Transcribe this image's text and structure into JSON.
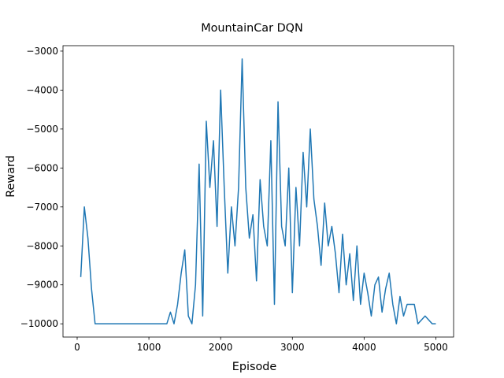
{
  "chart_data": {
    "type": "line",
    "title": "MountainCar DQN",
    "x_label": "Episode",
    "y_label": "Reward",
    "x": [
      50,
      100,
      150,
      200,
      250,
      300,
      350,
      400,
      450,
      500,
      550,
      600,
      650,
      700,
      750,
      800,
      850,
      900,
      950,
      1000,
      1050,
      1100,
      1150,
      1200,
      1250,
      1300,
      1350,
      1400,
      1450,
      1500,
      1550,
      1600,
      1650,
      1700,
      1750,
      1800,
      1850,
      1900,
      1950,
      2000,
      2050,
      2100,
      2150,
      2200,
      2250,
      2300,
      2350,
      2400,
      2450,
      2500,
      2550,
      2600,
      2650,
      2700,
      2750,
      2800,
      2850,
      2900,
      2950,
      3000,
      3050,
      3100,
      3150,
      3200,
      3250,
      3300,
      3350,
      3400,
      3450,
      3500,
      3550,
      3600,
      3650,
      3700,
      3750,
      3800,
      3850,
      3900,
      3950,
      4000,
      4050,
      4100,
      4150,
      4200,
      4250,
      4300,
      4350,
      4400,
      4450,
      4500,
      4550,
      4600,
      4650,
      4700,
      4750,
      4800,
      4850,
      4900,
      4950,
      5000
    ],
    "series": [
      {
        "color": "#1f77b4",
        "values": [
          -8800,
          -7000,
          -7800,
          -9100,
          -10000,
          -10000,
          -10000,
          -10000,
          -10000,
          -10000,
          -10000,
          -10000,
          -10000,
          -10000,
          -10000,
          -10000,
          -10000,
          -10000,
          -10000,
          -10000,
          -10000,
          -10000,
          -10000,
          -10000,
          -10000,
          -9700,
          -10000,
          -9500,
          -8700,
          -8100,
          -9800,
          -10000,
          -9000,
          -5900,
          -9800,
          -4800,
          -6500,
          -5300,
          -7500,
          -4000,
          -6500,
          -8700,
          -7000,
          -8000,
          -6500,
          -3200,
          -6500,
          -7800,
          -7200,
          -8900,
          -6300,
          -7500,
          -8000,
          -5300,
          -9500,
          -4300,
          -7500,
          -8000,
          -6000,
          -9200,
          -6500,
          -8000,
          -5600,
          -7000,
          -5000,
          -6800,
          -7500,
          -8500,
          -6900,
          -8000,
          -7500,
          -8200,
          -9200,
          -7700,
          -9000,
          -8200,
          -9400,
          -8000,
          -9500,
          -8700,
          -9200,
          -9800,
          -9000,
          -8800,
          -9700,
          -9100,
          -8700,
          -9500,
          -10000,
          -9300,
          -9800,
          -9500,
          -9500,
          -9500,
          -10000,
          -9900,
          -9800,
          -9900,
          -10000,
          -10000
        ]
      }
    ],
    "xlim": [
      -197.5,
      5247.5
    ],
    "xticks": [
      0,
      1000,
      2000,
      3000,
      4000,
      5000
    ],
    "ylim": [
      -10340,
      -2860
    ],
    "yticks": [
      {
        "value": -10000,
        "label": "−10000"
      },
      {
        "value": -9000,
        "label": "−9000"
      },
      {
        "value": -8000,
        "label": "−8000"
      },
      {
        "value": -7000,
        "label": "−7000"
      },
      {
        "value": -6000,
        "label": "−6000"
      },
      {
        "value": -5000,
        "label": "−5000"
      },
      {
        "value": -4000,
        "label": "−4000"
      },
      {
        "value": -3000,
        "label": "−3000"
      }
    ]
  }
}
